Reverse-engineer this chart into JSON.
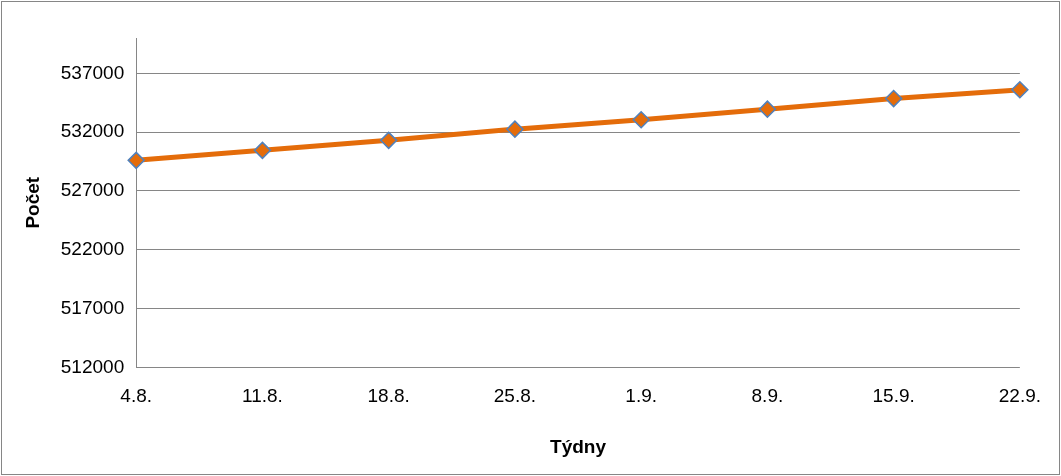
{
  "chart_data": {
    "type": "line",
    "xlabel": "Týdny",
    "ylabel": "Počet",
    "categories": [
      "4.8.",
      "11.8.",
      "18.8.",
      "25.8.",
      "1.9.",
      "8.9.",
      "15.9.",
      "22.9."
    ],
    "series": [
      {
        "color": "#e46c0a",
        "values": [
          529600,
          530450,
          531300,
          532250,
          533050,
          533950,
          534850,
          535600
        ]
      }
    ],
    "ylim": [
      512000,
      540000
    ],
    "yticks": [
      512000,
      517000,
      522000,
      527000,
      532000,
      537000
    ],
    "grid": "y",
    "legend": false,
    "marker": "diamond",
    "line_style": "solid"
  }
}
